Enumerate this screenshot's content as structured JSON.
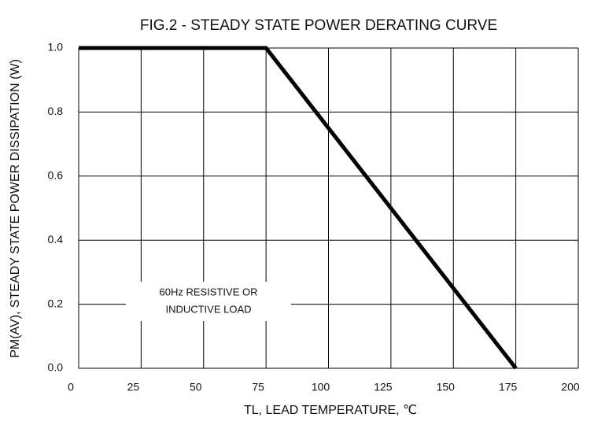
{
  "chart_data": {
    "type": "line",
    "title": "FIG.2 - STEADY STATE POWER DERATING CURVE",
    "x_label": "TL, LEAD TEMPERATURE,    ℃",
    "y_label": "PM(AV),   STEADY STATE POWER DISSIPATION (W)",
    "annotation": [
      "60Hz RESISTIVE OR",
      "INDUCTIVE LOAD"
    ],
    "x": [
      0,
      75,
      175
    ],
    "values": [
      1,
      1,
      0
    ],
    "color": "#000000",
    "xlim": [
      0,
      200
    ],
    "xticks": [
      0,
      25,
      50,
      75,
      100,
      125,
      150,
      175,
      200
    ],
    "ylim": [
      0,
      1
    ],
    "yticks": [
      {
        "value": 0,
        "label": "0.0"
      },
      0.2,
      0.4,
      0.6,
      0.8,
      {
        "value": 1,
        "label": "1.0"
      }
    ],
    "grid": true
  }
}
